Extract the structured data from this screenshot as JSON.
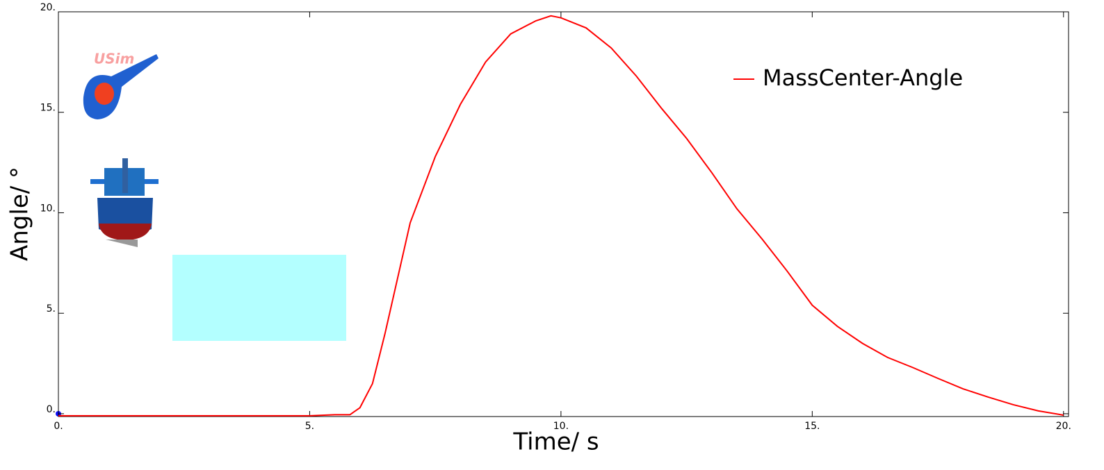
{
  "chart_data": {
    "type": "line",
    "xlabel": "Time/ s",
    "ylabel": "Angle/ °",
    "x": [
      0,
      1,
      2,
      3,
      4,
      5,
      5.5,
      5.8,
      6,
      6.25,
      6.5,
      7,
      7.5,
      8,
      8.5,
      9,
      9.5,
      9.8,
      10,
      10.5,
      11,
      11.5,
      12,
      12.5,
      13,
      13.5,
      14,
      14.5,
      15,
      15.5,
      16,
      16.5,
      17,
      17.5,
      18,
      18.5,
      19,
      19.5,
      20
    ],
    "series": [
      {
        "name": "MassCenter-Angle",
        "color": "#ff0000",
        "values": [
          -0.1,
          -0.1,
          -0.1,
          -0.1,
          -0.1,
          -0.1,
          -0.05,
          -0.05,
          0.3,
          1.5,
          4.0,
          9.5,
          12.8,
          15.4,
          17.5,
          18.9,
          19.55,
          19.8,
          19.7,
          19.2,
          18.2,
          16.8,
          15.2,
          13.7,
          12.0,
          10.2,
          8.7,
          7.1,
          5.4,
          4.35,
          3.5,
          2.8,
          2.3,
          1.76,
          1.24,
          0.83,
          0.45,
          0.14,
          -0.07
        ]
      }
    ],
    "xlim": [
      0,
      20.1
    ],
    "ylim": [
      -0.14,
      20
    ],
    "xticks": [
      {
        "value": 0,
        "label": "0."
      },
      {
        "value": 5,
        "label": "5."
      },
      {
        "value": 10,
        "label": "10."
      },
      {
        "value": 15,
        "label": "15."
      },
      {
        "value": 20,
        "label": "20."
      }
    ],
    "yticks": [
      {
        "value": 0,
        "label": "0."
      },
      {
        "value": 5,
        "label": "5."
      },
      {
        "value": 10,
        "label": "10."
      },
      {
        "value": 15,
        "label": "15."
      },
      {
        "value": 20,
        "label": "20."
      }
    ],
    "legend": "upper right"
  }
}
